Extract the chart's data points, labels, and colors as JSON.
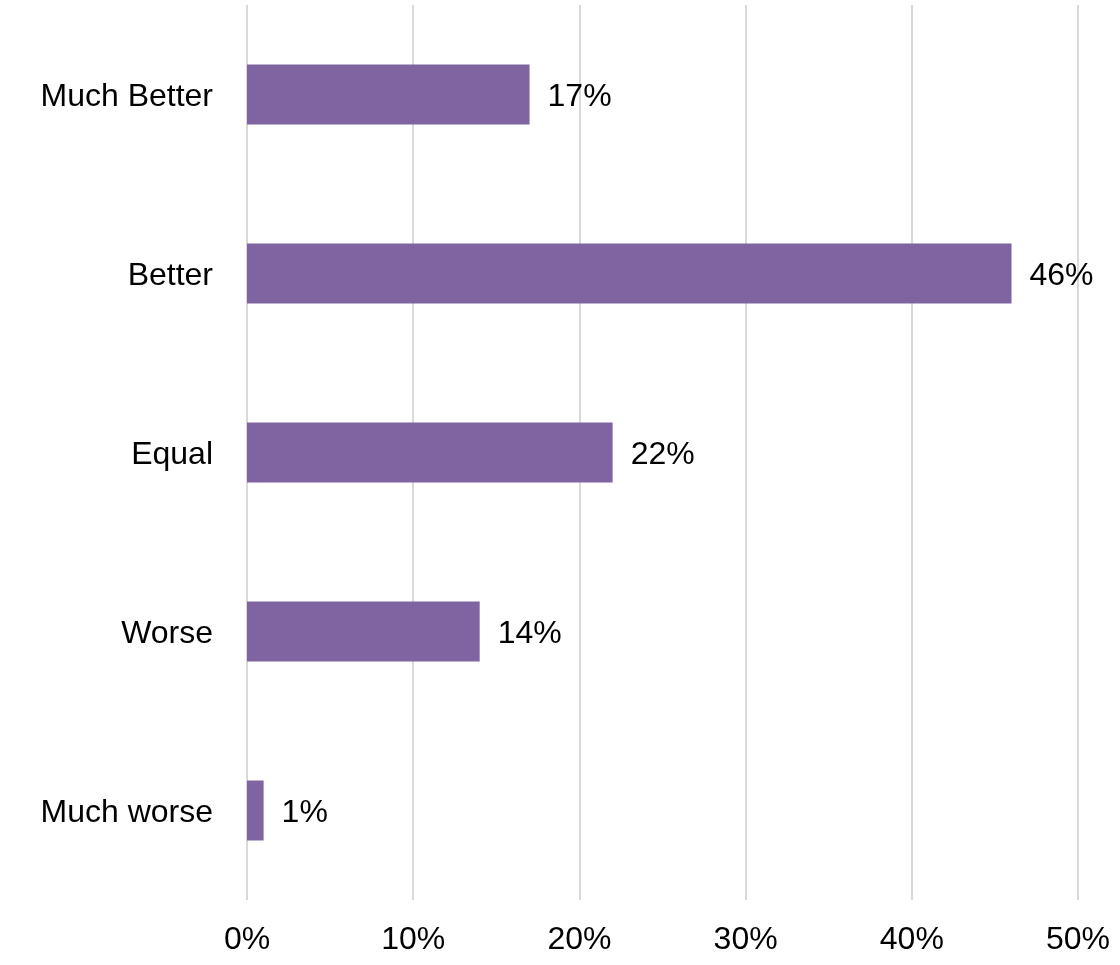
{
  "chart_data": {
    "type": "bar",
    "orientation": "horizontal",
    "categories": [
      "Much Better",
      "Better",
      "Equal",
      "Worse",
      "Much worse"
    ],
    "values": [
      17,
      46,
      22,
      14,
      1
    ],
    "value_labels": [
      "17%",
      "46%",
      "22%",
      "14%",
      "1%"
    ],
    "color": "#8064a2",
    "xlim": [
      0,
      50
    ],
    "xticks": [
      {
        "value": 0,
        "label": "0%"
      },
      {
        "value": 10,
        "label": "10%"
      },
      {
        "value": 20,
        "label": "20%"
      },
      {
        "value": 30,
        "label": "30%"
      },
      {
        "value": 40,
        "label": "40%"
      },
      {
        "value": 50,
        "label": "50%"
      }
    ],
    "grid": "x"
  }
}
